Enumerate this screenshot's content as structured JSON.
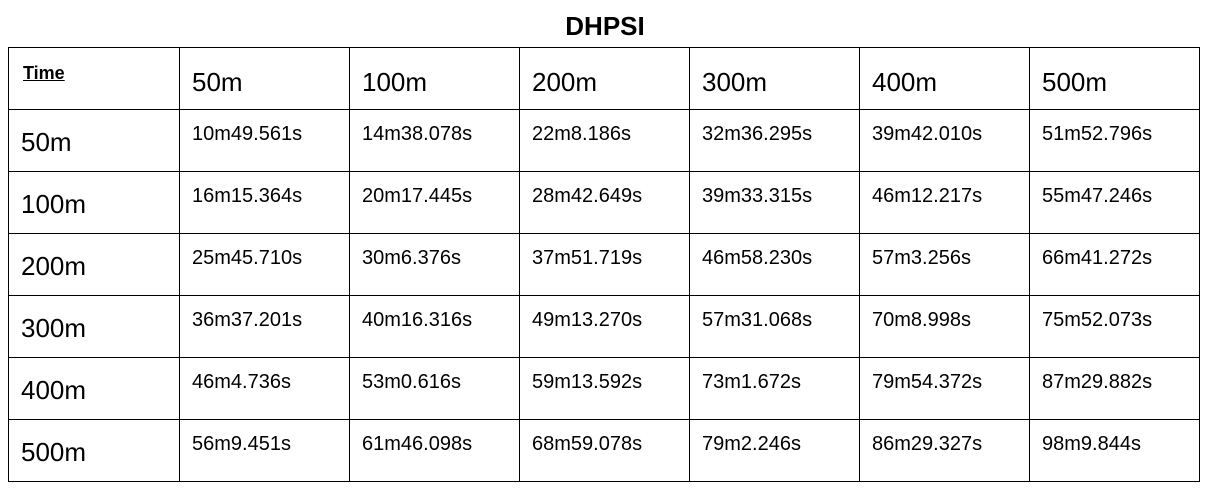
{
  "title": "DHPSI",
  "table": {
    "corner_label": "Time",
    "column_headers": [
      "50m",
      "100m",
      "200m",
      "300m",
      "400m",
      "500m"
    ],
    "rows": [
      {
        "label": "50m",
        "values": [
          "10m49.561s",
          "14m38.078s",
          "22m8.186s",
          "32m36.295s",
          "39m42.010s",
          "51m52.796s"
        ]
      },
      {
        "label": "100m",
        "values": [
          "16m15.364s",
          "20m17.445s",
          "28m42.649s",
          "39m33.315s",
          "46m12.217s",
          "55m47.246s"
        ]
      },
      {
        "label": "200m",
        "values": [
          "25m45.710s",
          "30m6.376s",
          "37m51.719s",
          "46m58.230s",
          "57m3.256s",
          "66m41.272s"
        ]
      },
      {
        "label": "300m",
        "values": [
          "36m37.201s",
          "40m16.316s",
          "49m13.270s",
          "57m31.068s",
          "70m8.998s",
          "75m52.073s"
        ]
      },
      {
        "label": "400m",
        "values": [
          "46m4.736s",
          "53m0.616s",
          "59m13.592s",
          "73m1.672s",
          "79m54.372s",
          "87m29.882s"
        ]
      },
      {
        "label": "500m",
        "values": [
          "56m9.451s",
          "61m46.098s",
          "68m59.078s",
          "79m2.246s",
          "86m29.327s",
          "98m9.844s"
        ]
      }
    ]
  }
}
